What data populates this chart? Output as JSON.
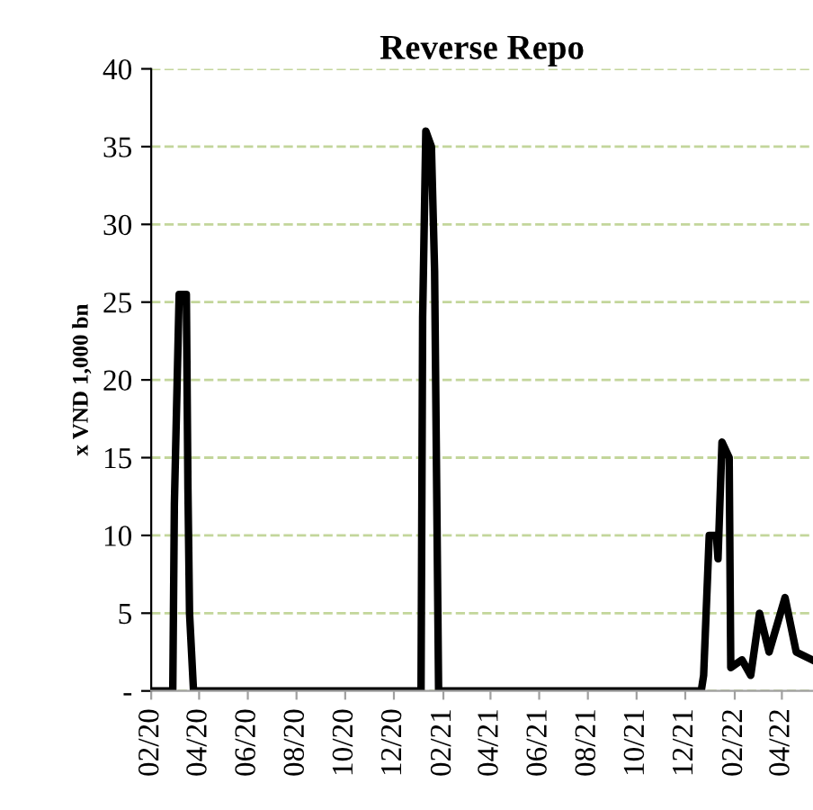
{
  "chart_data": {
    "type": "line",
    "title": "Reverse Repo",
    "ylabel": "x VND 1,000 bn",
    "x": [
      "2020-02-01",
      "2020-02-28",
      "2020-03-01",
      "2020-03-05",
      "2020-03-07",
      "2020-03-16",
      "2020-03-18",
      "2020-03-20",
      "2020-03-25",
      "2021-01-04",
      "2021-01-06",
      "2021-01-10",
      "2021-01-17",
      "2021-01-21",
      "2021-01-26",
      "2021-12-21",
      "2021-12-24",
      "2021-12-31",
      "2022-01-09",
      "2022-01-11",
      "2022-01-16",
      "2022-01-25",
      "2022-01-27",
      "2022-02-10",
      "2022-02-21",
      "2022-03-04",
      "2022-03-16",
      "2022-04-05",
      "2022-04-19",
      "2022-05-09"
    ],
    "series": [
      {
        "color": "#000000",
        "values": [
          0,
          0,
          12,
          21,
          25.5,
          25.5,
          13,
          5,
          0,
          0,
          24,
          36,
          35,
          27,
          0,
          0,
          1,
          10,
          10,
          8.5,
          16,
          15,
          1.5,
          2,
          1,
          5,
          2.5,
          6,
          2.5,
          2
        ]
      }
    ],
    "xlim": [
      "2020-02-01",
      "2022-05-10"
    ],
    "xticks": [
      {
        "value": "2020-02-01",
        "label": "02/20"
      },
      {
        "value": "2020-04-01",
        "label": "04/20"
      },
      {
        "value": "2020-06-01",
        "label": "06/20"
      },
      {
        "value": "2020-08-01",
        "label": "08/20"
      },
      {
        "value": "2020-10-01",
        "label": "10/20"
      },
      {
        "value": "2020-12-01",
        "label": "12/20"
      },
      {
        "value": "2021-02-01",
        "label": "02/21"
      },
      {
        "value": "2021-04-01",
        "label": "04/21"
      },
      {
        "value": "2021-06-01",
        "label": "06/21"
      },
      {
        "value": "2021-08-01",
        "label": "08/21"
      },
      {
        "value": "2021-10-01",
        "label": "10/21"
      },
      {
        "value": "2021-12-01",
        "label": "12/21"
      },
      {
        "value": "2022-02-01",
        "label": "02/22"
      },
      {
        "value": "2022-04-01",
        "label": "04/22"
      }
    ],
    "ylim": [
      0,
      40
    ],
    "yticks": [
      {
        "value": 0,
        "label": "-"
      },
      5,
      10,
      15,
      20,
      25,
      30,
      35,
      40
    ],
    "grid": "y",
    "legend": false,
    "marker": "none",
    "line_style": "solid"
  }
}
